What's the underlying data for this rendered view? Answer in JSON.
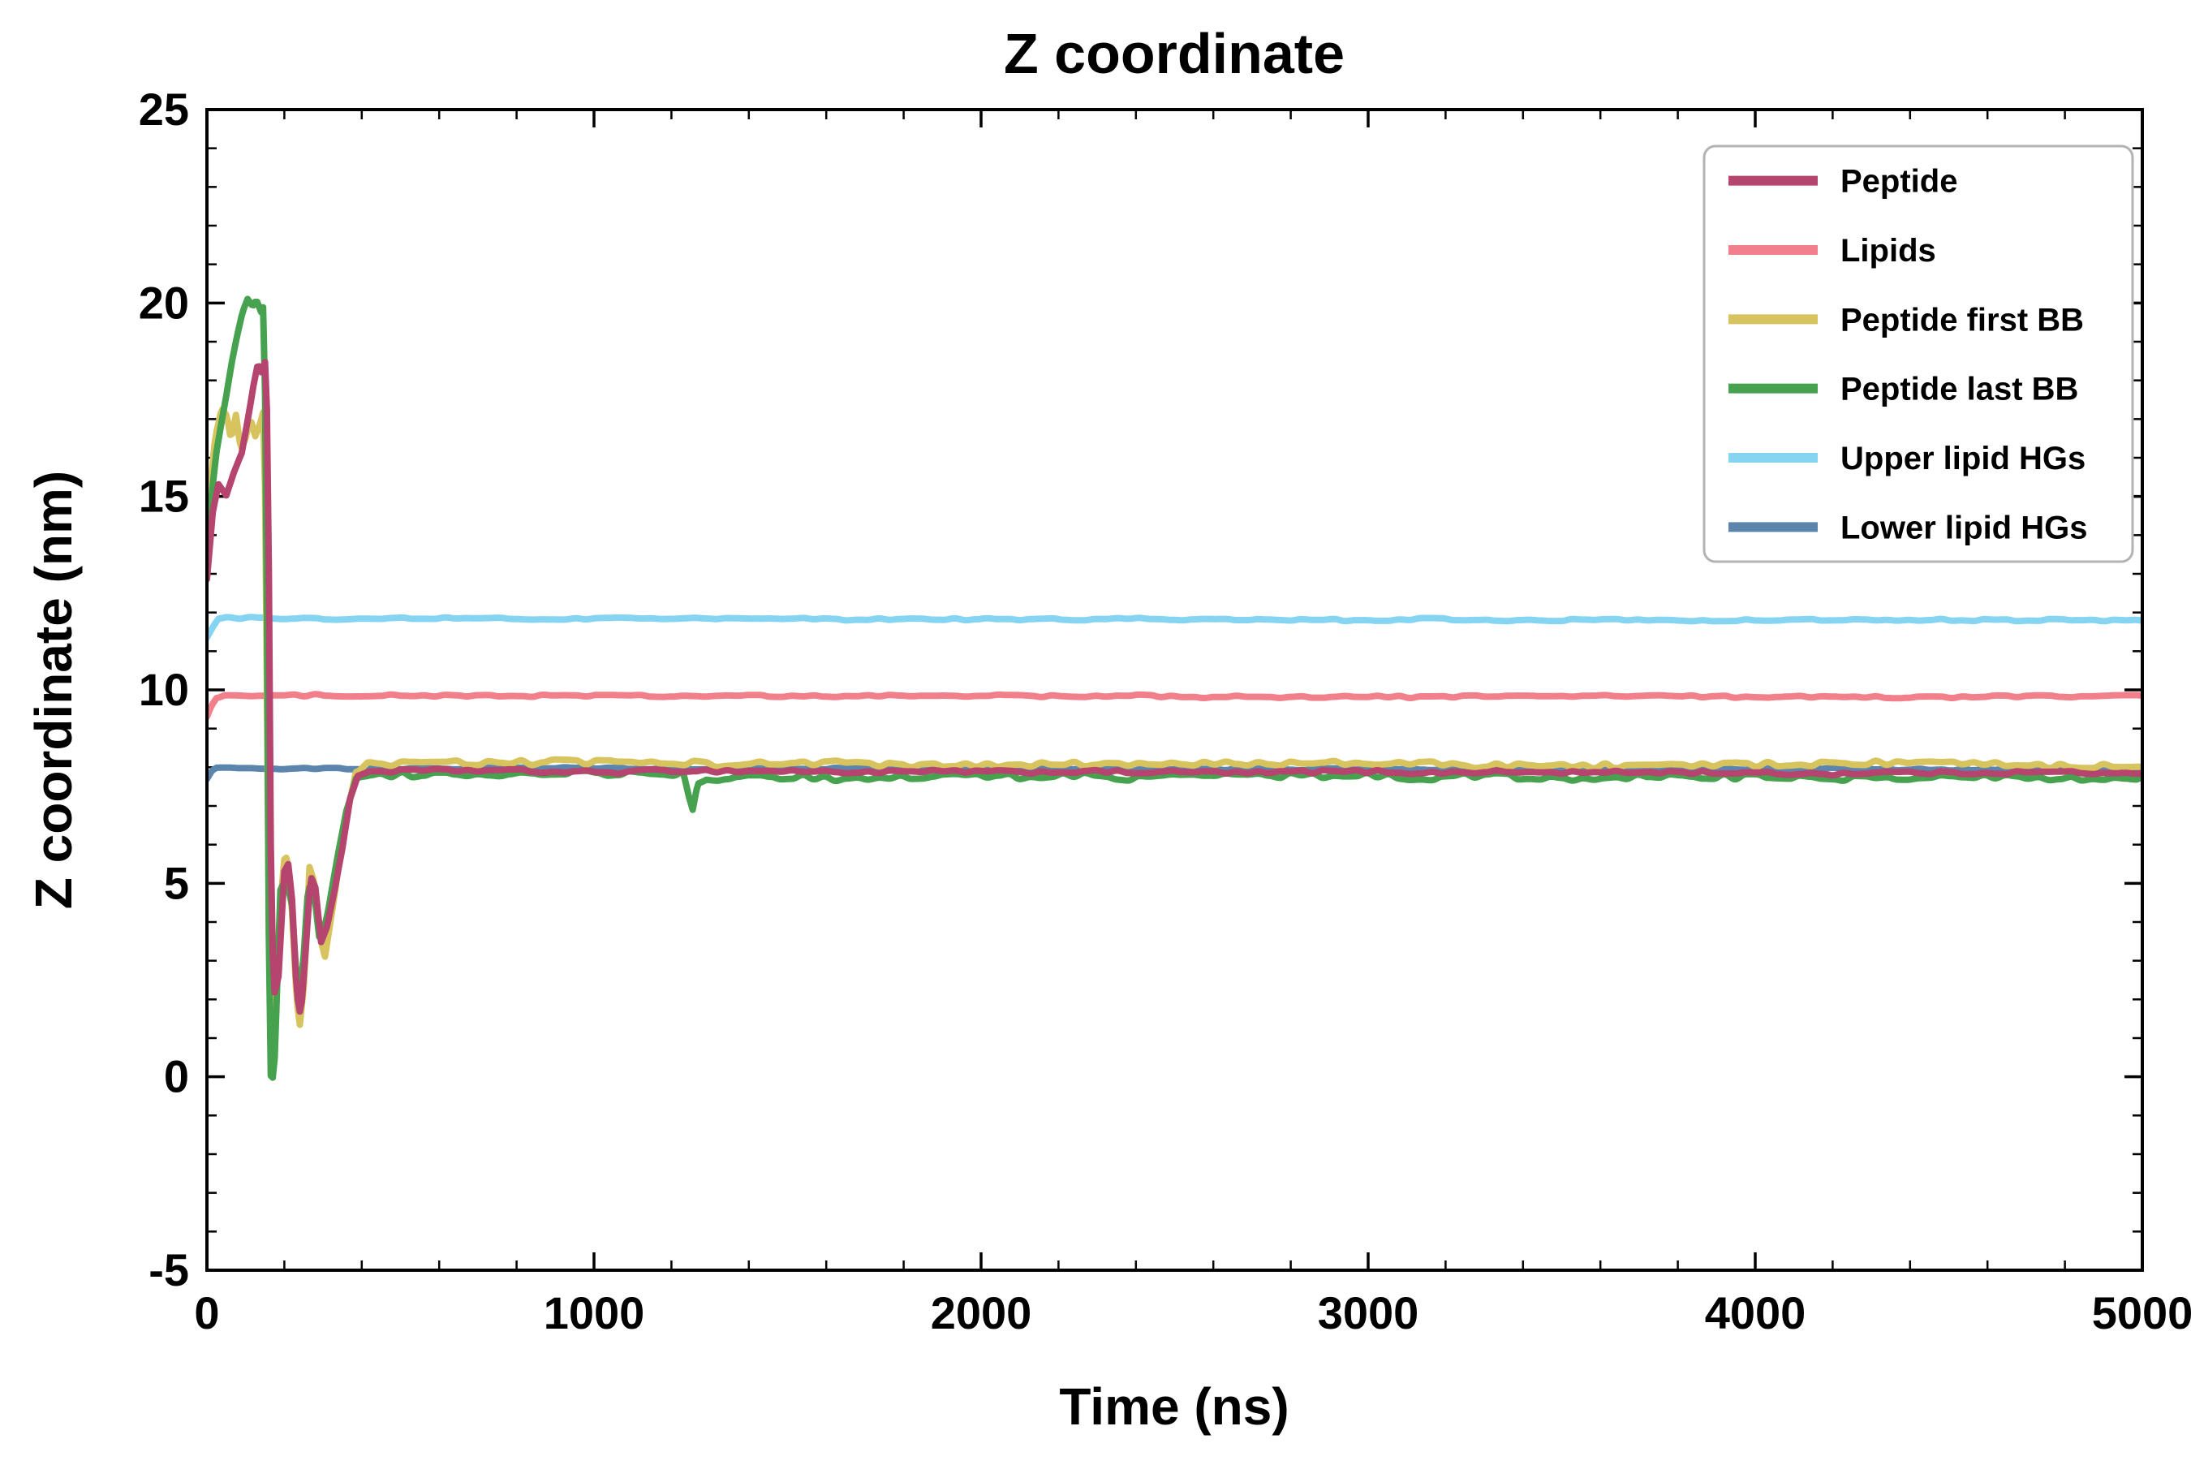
{
  "chart_data": {
    "type": "line",
    "title": "Z coordinate",
    "xlabel": "Time (ns)",
    "ylabel": "Z coordinate (nm)",
    "xlim": [
      0,
      5000
    ],
    "ylim": [
      -5,
      25
    ],
    "x_major_ticks": [
      0,
      1000,
      2000,
      3000,
      4000,
      5000
    ],
    "y_major_ticks": [
      -5,
      0,
      5,
      10,
      15,
      20,
      25
    ],
    "x_minor_step": 200,
    "y_minor_step": 1,
    "grid": false,
    "legend_position": "upper right",
    "series": [
      {
        "name": "Peptide",
        "color": "#b5446e",
        "noise": 0.07,
        "points": [
          [
            0,
            12.9
          ],
          [
            15,
            14.6
          ],
          [
            30,
            15.3
          ],
          [
            50,
            15.0
          ],
          [
            70,
            15.6
          ],
          [
            90,
            16.1
          ],
          [
            105,
            17.0
          ],
          [
            120,
            17.9
          ],
          [
            132,
            18.5
          ],
          [
            142,
            18.2
          ],
          [
            152,
            18.6
          ],
          [
            158,
            16.0
          ],
          [
            165,
            6.0
          ],
          [
            172,
            2.1
          ],
          [
            185,
            2.6
          ],
          [
            200,
            5.3
          ],
          [
            210,
            5.5
          ],
          [
            220,
            4.6
          ],
          [
            232,
            2.2
          ],
          [
            242,
            1.6
          ],
          [
            255,
            3.3
          ],
          [
            268,
            5.2
          ],
          [
            280,
            4.9
          ],
          [
            295,
            3.5
          ],
          [
            310,
            3.9
          ],
          [
            330,
            4.8
          ],
          [
            350,
            5.9
          ],
          [
            370,
            7.2
          ],
          [
            390,
            7.8
          ],
          [
            420,
            7.9
          ],
          [
            5000,
            7.85
          ]
        ]
      },
      {
        "name": "Lipids",
        "color": "#f2808a",
        "noise": 0.05,
        "points": [
          [
            0,
            9.3
          ],
          [
            12,
            9.6
          ],
          [
            25,
            9.8
          ],
          [
            45,
            9.85
          ],
          [
            5000,
            9.82
          ]
        ]
      },
      {
        "name": "Peptide first BB",
        "color": "#d8c45f",
        "noise": 0.12,
        "points": [
          [
            0,
            13.1
          ],
          [
            10,
            15.4
          ],
          [
            22,
            16.6
          ],
          [
            38,
            17.3
          ],
          [
            52,
            17.0
          ],
          [
            62,
            16.4
          ],
          [
            75,
            17.1
          ],
          [
            88,
            16.2
          ],
          [
            100,
            16.5
          ],
          [
            112,
            17.0
          ],
          [
            125,
            16.5
          ],
          [
            138,
            16.8
          ],
          [
            148,
            17.2
          ],
          [
            155,
            10.0
          ],
          [
            162,
            1.2
          ],
          [
            170,
            0.8
          ],
          [
            182,
            2.6
          ],
          [
            198,
            5.5
          ],
          [
            208,
            5.6
          ],
          [
            220,
            4.2
          ],
          [
            232,
            1.9
          ],
          [
            240,
            1.3
          ],
          [
            252,
            2.5
          ],
          [
            265,
            5.4
          ],
          [
            278,
            5.0
          ],
          [
            292,
            3.6
          ],
          [
            305,
            3.1
          ],
          [
            325,
            4.4
          ],
          [
            345,
            5.8
          ],
          [
            365,
            6.9
          ],
          [
            385,
            7.9
          ],
          [
            415,
            8.1
          ],
          [
            5000,
            8.05
          ]
        ]
      },
      {
        "name": "Peptide last BB",
        "color": "#46a24f",
        "noise": 0.12,
        "points": [
          [
            0,
            13.3
          ],
          [
            12,
            15.0
          ],
          [
            25,
            16.1
          ],
          [
            40,
            17.0
          ],
          [
            52,
            17.7
          ],
          [
            65,
            18.5
          ],
          [
            78,
            19.2
          ],
          [
            92,
            19.8
          ],
          [
            105,
            20.1
          ],
          [
            118,
            19.9
          ],
          [
            128,
            20.1
          ],
          [
            140,
            19.8
          ],
          [
            148,
            20.0
          ],
          [
            155,
            12.0
          ],
          [
            162,
            0.3
          ],
          [
            168,
            -0.2
          ],
          [
            175,
            0.5
          ],
          [
            190,
            4.8
          ],
          [
            205,
            5.1
          ],
          [
            220,
            4.5
          ],
          [
            235,
            2.0
          ],
          [
            248,
            2.8
          ],
          [
            262,
            4.9
          ],
          [
            278,
            4.6
          ],
          [
            292,
            3.4
          ],
          [
            312,
            4.2
          ],
          [
            335,
            5.5
          ],
          [
            360,
            6.9
          ],
          [
            385,
            7.7
          ],
          [
            420,
            7.8
          ],
          [
            1230,
            7.8
          ],
          [
            1245,
            7.2
          ],
          [
            1255,
            6.9
          ],
          [
            1268,
            7.6
          ],
          [
            1290,
            7.75
          ],
          [
            5000,
            7.75
          ]
        ]
      },
      {
        "name": "Upper lipid HGs",
        "color": "#85d4f2",
        "noise": 0.045,
        "points": [
          [
            0,
            11.35
          ],
          [
            15,
            11.6
          ],
          [
            30,
            11.8
          ],
          [
            50,
            11.85
          ],
          [
            5000,
            11.8
          ]
        ]
      },
      {
        "name": "Lower lipid HGs",
        "color": "#5b85ad",
        "noise": 0.04,
        "points": [
          [
            0,
            7.7
          ],
          [
            12,
            7.9
          ],
          [
            25,
            7.97
          ],
          [
            5000,
            7.95
          ]
        ]
      }
    ],
    "draw_order": [
      "Lower lipid HGs",
      "Upper lipid HGs",
      "Lipids",
      "Peptide first BB",
      "Peptide last BB",
      "Peptide"
    ]
  },
  "colors": {
    "axis": "#000000",
    "background": "#ffffff",
    "legend_border": "#b3b3b3",
    "legend_background": "#ffffff"
  }
}
